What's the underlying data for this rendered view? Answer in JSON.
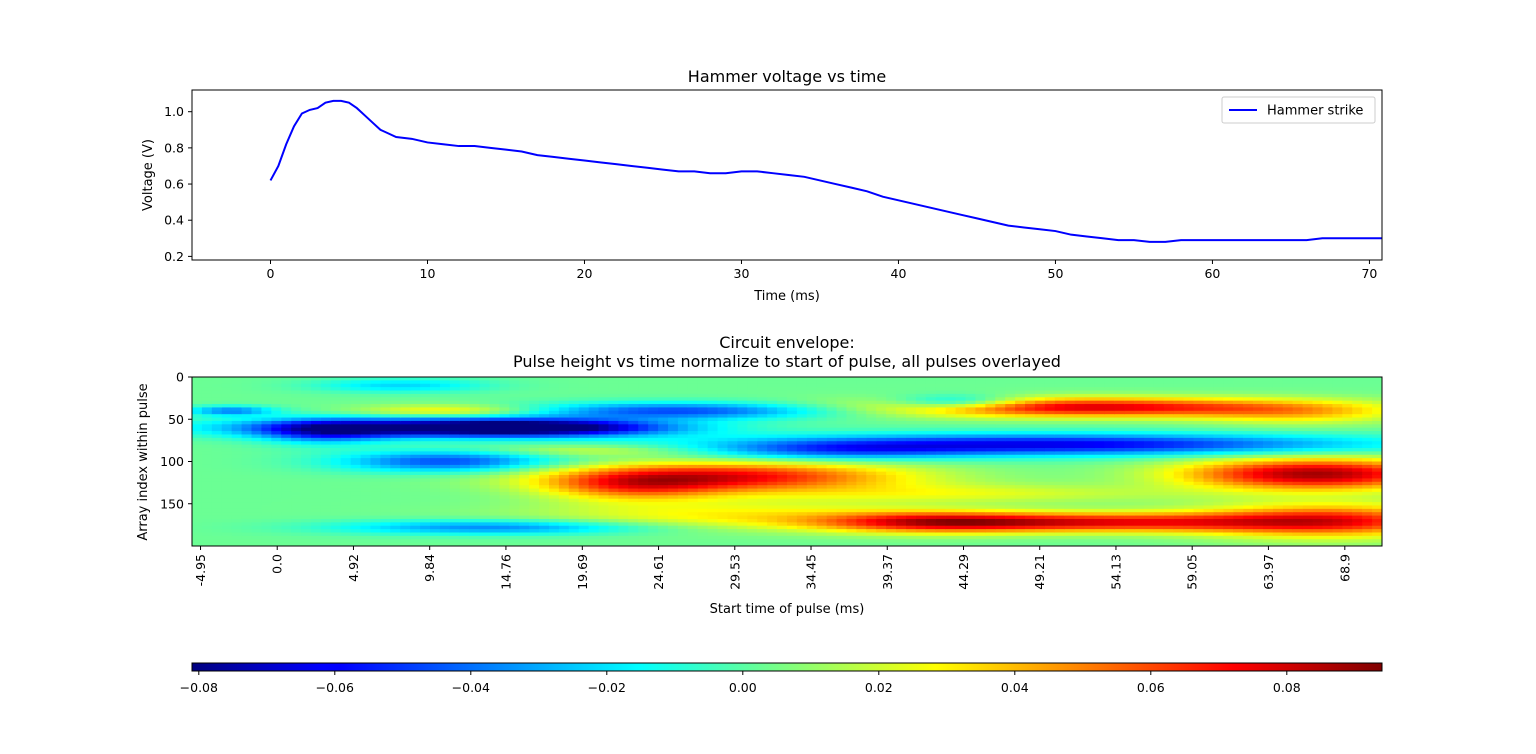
{
  "figure": {
    "panels": [
      "line-plot",
      "heatmap",
      "colorbar"
    ]
  },
  "chart_data": [
    {
      "type": "line",
      "title": "Hammer voltage vs time",
      "xlabel": "Time (ms)",
      "ylabel": "Voltage (V)",
      "xlim": [
        -5,
        70.8
      ],
      "ylim": [
        0.18,
        1.12
      ],
      "x_ticks": [
        0,
        10,
        20,
        30,
        40,
        50,
        60,
        70
      ],
      "y_ticks": [
        0.2,
        0.4,
        0.6,
        0.8,
        1.0
      ],
      "grid": false,
      "legend_position": "top-right",
      "color": "#0000ff",
      "series": [
        {
          "name": "Hammer strike",
          "x": [
            0,
            0.5,
            1,
            1.5,
            2,
            2.5,
            3,
            3.5,
            4,
            4.5,
            5,
            5.5,
            6,
            6.5,
            7,
            7.5,
            8,
            9,
            10,
            11,
            12,
            13,
            14,
            15,
            16,
            17,
            18,
            19,
            20,
            21,
            22,
            23,
            24,
            25,
            26,
            27,
            28,
            29,
            30,
            31,
            32,
            33,
            34,
            35,
            36,
            37,
            38,
            39,
            40,
            41,
            42,
            43,
            44,
            45,
            46,
            47,
            48,
            49,
            50,
            51,
            52,
            53,
            54,
            55,
            56,
            57,
            58,
            59,
            60,
            61,
            62,
            63,
            64,
            65,
            66,
            67,
            68,
            69,
            70,
            70.8
          ],
          "y": [
            0.62,
            0.7,
            0.82,
            0.92,
            0.99,
            1.01,
            1.02,
            1.05,
            1.06,
            1.06,
            1.05,
            1.02,
            0.98,
            0.94,
            0.9,
            0.88,
            0.86,
            0.85,
            0.83,
            0.82,
            0.81,
            0.81,
            0.8,
            0.79,
            0.78,
            0.76,
            0.75,
            0.74,
            0.73,
            0.72,
            0.71,
            0.7,
            0.69,
            0.68,
            0.67,
            0.67,
            0.66,
            0.66,
            0.67,
            0.67,
            0.66,
            0.65,
            0.64,
            0.62,
            0.6,
            0.58,
            0.56,
            0.53,
            0.51,
            0.49,
            0.47,
            0.45,
            0.43,
            0.41,
            0.39,
            0.37,
            0.36,
            0.35,
            0.34,
            0.32,
            0.31,
            0.3,
            0.29,
            0.29,
            0.28,
            0.28,
            0.29,
            0.29,
            0.29,
            0.29,
            0.29,
            0.29,
            0.29,
            0.29,
            0.29,
            0.3,
            0.3,
            0.3,
            0.3,
            0.3
          ]
        }
      ]
    },
    {
      "type": "heatmap",
      "title": "Circuit envelope:\nPulse height vs time normalize to start of pulse, all pulses overlayed",
      "xlabel": "Start time of pulse (ms)",
      "ylabel": "Array index within pulse",
      "xlim": [
        -5.5,
        71.3
      ],
      "ylim": [
        200,
        0
      ],
      "x_ticks": [
        -4.95,
        0.0,
        4.92,
        9.84,
        14.76,
        19.69,
        24.61,
        29.53,
        34.45,
        39.37,
        44.29,
        49.21,
        54.13,
        59.05,
        63.97,
        68.9
      ],
      "x_tick_labels": [
        "-4.95",
        "0.0",
        "4.92",
        "9.84",
        "14.76",
        "19.69",
        "24.61",
        "29.53",
        "34.45",
        "39.37",
        "44.29",
        "49.21",
        "54.13",
        "59.05",
        "63.97",
        "68.9"
      ],
      "y_ticks": [
        0,
        50,
        100,
        150
      ],
      "colormap": "jet",
      "value_range": [
        -0.081,
        0.094
      ],
      "blobs": [
        {
          "t": 9.5,
          "idx": 60,
          "st": 9,
          "si": 8,
          "v": -0.07
        },
        {
          "t": 17,
          "idx": 60,
          "st": 6,
          "si": 7,
          "v": -0.06
        },
        {
          "t": 3,
          "idx": 65,
          "st": 3,
          "si": 10,
          "v": -0.04
        },
        {
          "t": 11,
          "idx": 100,
          "st": 5,
          "si": 9,
          "v": -0.05
        },
        {
          "t": 20,
          "idx": 87,
          "st": 5,
          "si": 5,
          "v": 0.02
        },
        {
          "t": 26,
          "idx": 40,
          "st": 7,
          "si": 7,
          "v": -0.05
        },
        {
          "t": 11,
          "idx": 40,
          "st": 4,
          "si": 5,
          "v": 0.03
        },
        {
          "t": 29,
          "idx": 118,
          "st": 8,
          "si": 12,
          "v": 0.07
        },
        {
          "t": 23,
          "idx": 130,
          "st": 4,
          "si": 12,
          "v": 0.04
        },
        {
          "t": 52,
          "idx": 36,
          "st": 9,
          "si": 8,
          "v": 0.075
        },
        {
          "t": 44,
          "idx": 30,
          "st": 3,
          "si": 6,
          "v": -0.04
        },
        {
          "t": 50,
          "idx": 80,
          "st": 14,
          "si": 9,
          "v": -0.065
        },
        {
          "t": 67,
          "idx": 115,
          "st": 6,
          "si": 13,
          "v": 0.085
        },
        {
          "t": 52,
          "idx": 172,
          "st": 10,
          "si": 8,
          "v": 0.07
        },
        {
          "t": 42,
          "idx": 172,
          "st": 5,
          "si": 9,
          "v": 0.04
        },
        {
          "t": 68,
          "idx": 170,
          "st": 6,
          "si": 14,
          "v": 0.06
        },
        {
          "t": 14,
          "idx": 178,
          "st": 7,
          "si": 6,
          "v": -0.04
        },
        {
          "t": 44,
          "idx": 138,
          "st": 10,
          "si": 8,
          "v": 0.02
        },
        {
          "t": 29,
          "idx": 163,
          "st": 9,
          "si": 12,
          "v": 0.025
        },
        {
          "t": 66,
          "idx": 42,
          "st": 5,
          "si": 10,
          "v": 0.03
        },
        {
          "t": 8,
          "idx": 10,
          "st": 4,
          "si": 6,
          "v": -0.025
        },
        {
          "t": -3,
          "idx": 40,
          "st": 2,
          "si": 4,
          "v": -0.04
        },
        {
          "t": 36,
          "idx": 88,
          "st": 6,
          "si": 8,
          "v": -0.03
        }
      ]
    },
    {
      "type": "colorbar",
      "orientation": "horizontal",
      "colormap": "jet",
      "range": [
        -0.081,
        0.094
      ],
      "ticks": [
        -0.08,
        -0.06,
        -0.04,
        -0.02,
        0.0,
        0.02,
        0.04,
        0.06,
        0.08
      ],
      "tick_labels": [
        "−0.08",
        "−0.06",
        "−0.04",
        "−0.02",
        "0.00",
        "0.02",
        "0.04",
        "0.06",
        "0.08"
      ]
    }
  ]
}
